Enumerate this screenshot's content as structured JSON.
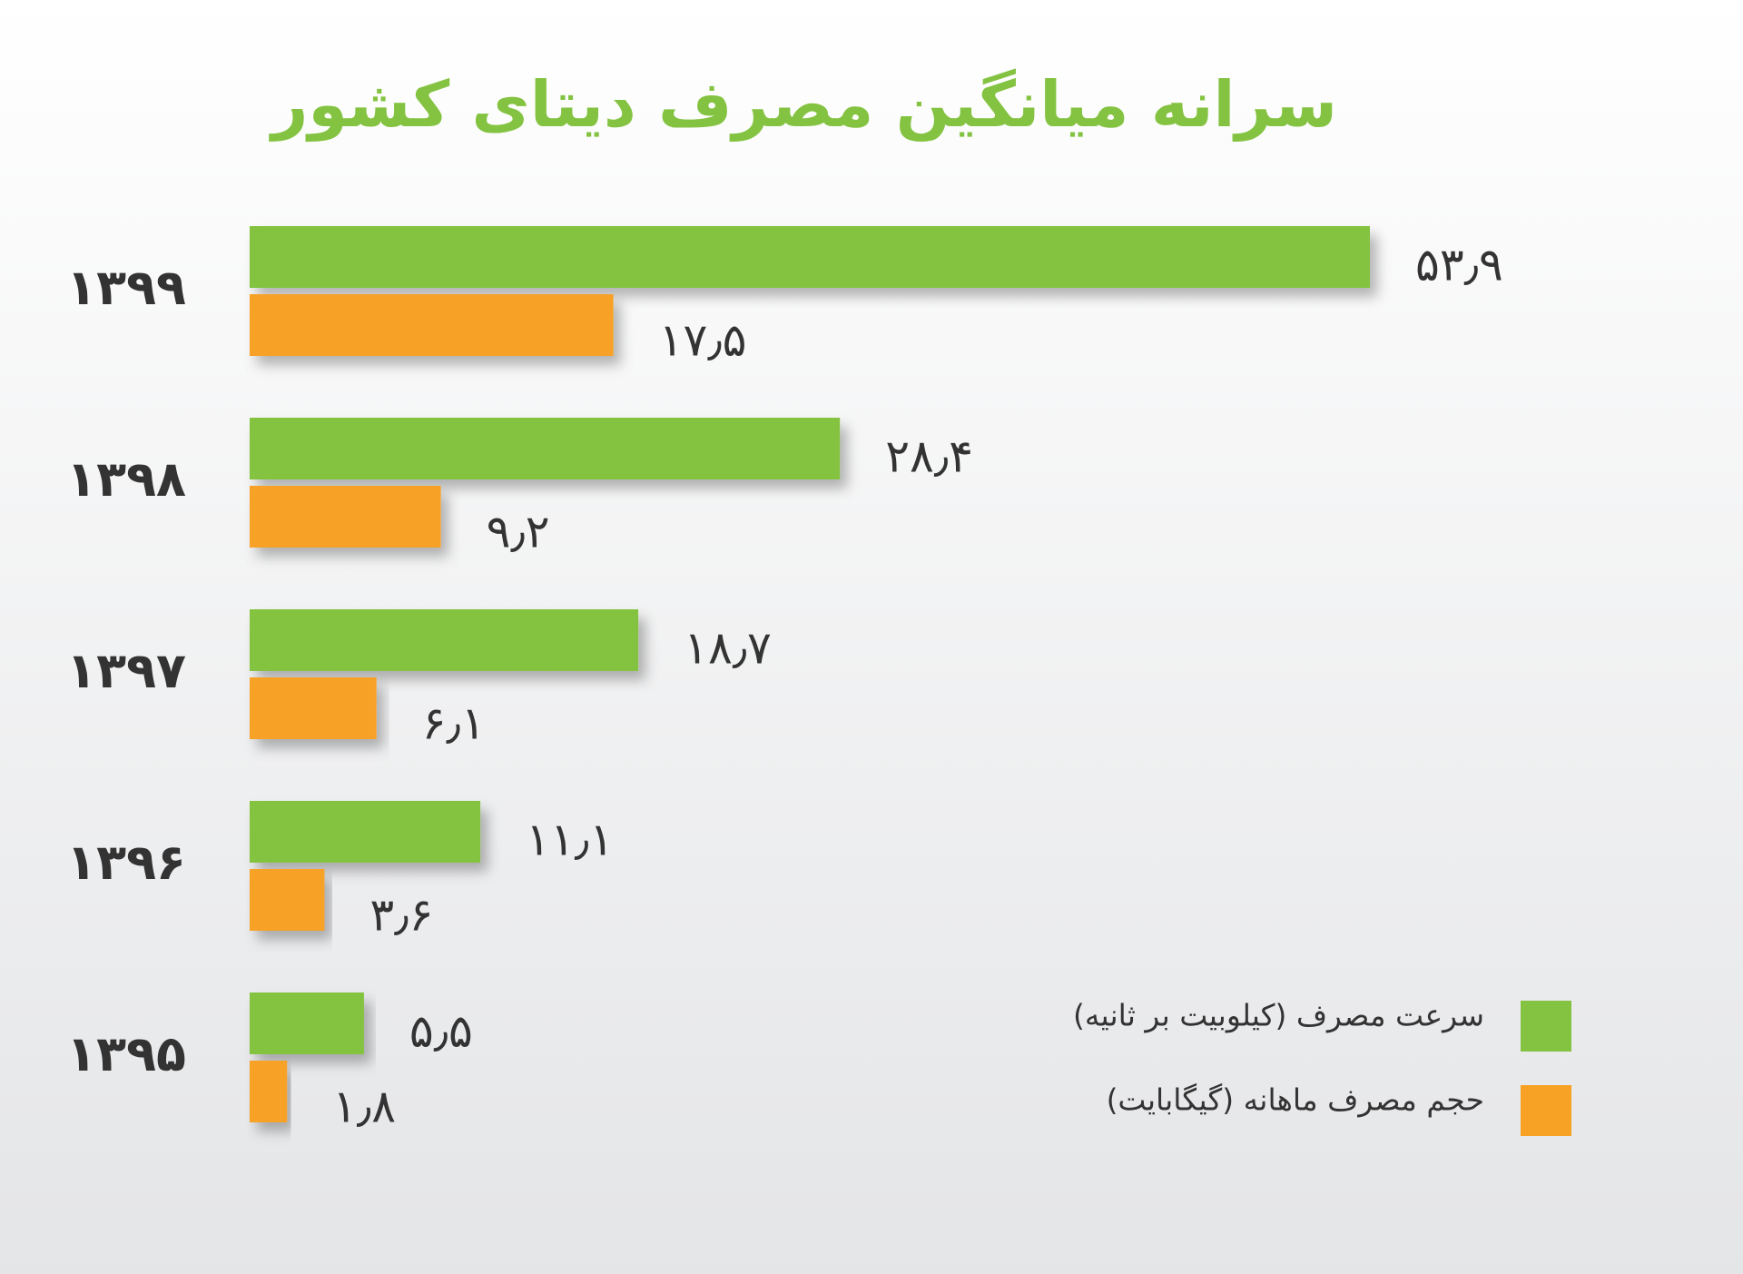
{
  "chart_data": {
    "type": "bar",
    "orientation": "horizontal",
    "title": "سرانه میانگین مصرف دیتای کشور",
    "categories": [
      "۱۳۹۹",
      "۱۳۹۸",
      "۱۳۹۷",
      "۱۳۹۶",
      "۱۳۹۵"
    ],
    "series": [
      {
        "name": "سرعت مصرف (کیلوبیت بر ثانیه)",
        "color": "#84c341",
        "values": [
          53.9,
          28.4,
          18.7,
          11.1,
          5.5
        ],
        "value_labels": [
          "۵۳٫۹",
          "۲۸٫۴",
          "۱۸٫۷",
          "۱۱٫۱",
          "۵٫۵"
        ]
      },
      {
        "name": "حجم مصرف ماهانه (گیگابایت)",
        "color": "#f7a125",
        "values": [
          17.5,
          9.2,
          6.1,
          3.6,
          1.8
        ],
        "value_labels": [
          "۱۷٫۵",
          "۹٫۲",
          "۶٫۱",
          "۳٫۶",
          "۱٫۸"
        ]
      }
    ],
    "title_color": "#84c341",
    "legend": "bottom-right"
  }
}
